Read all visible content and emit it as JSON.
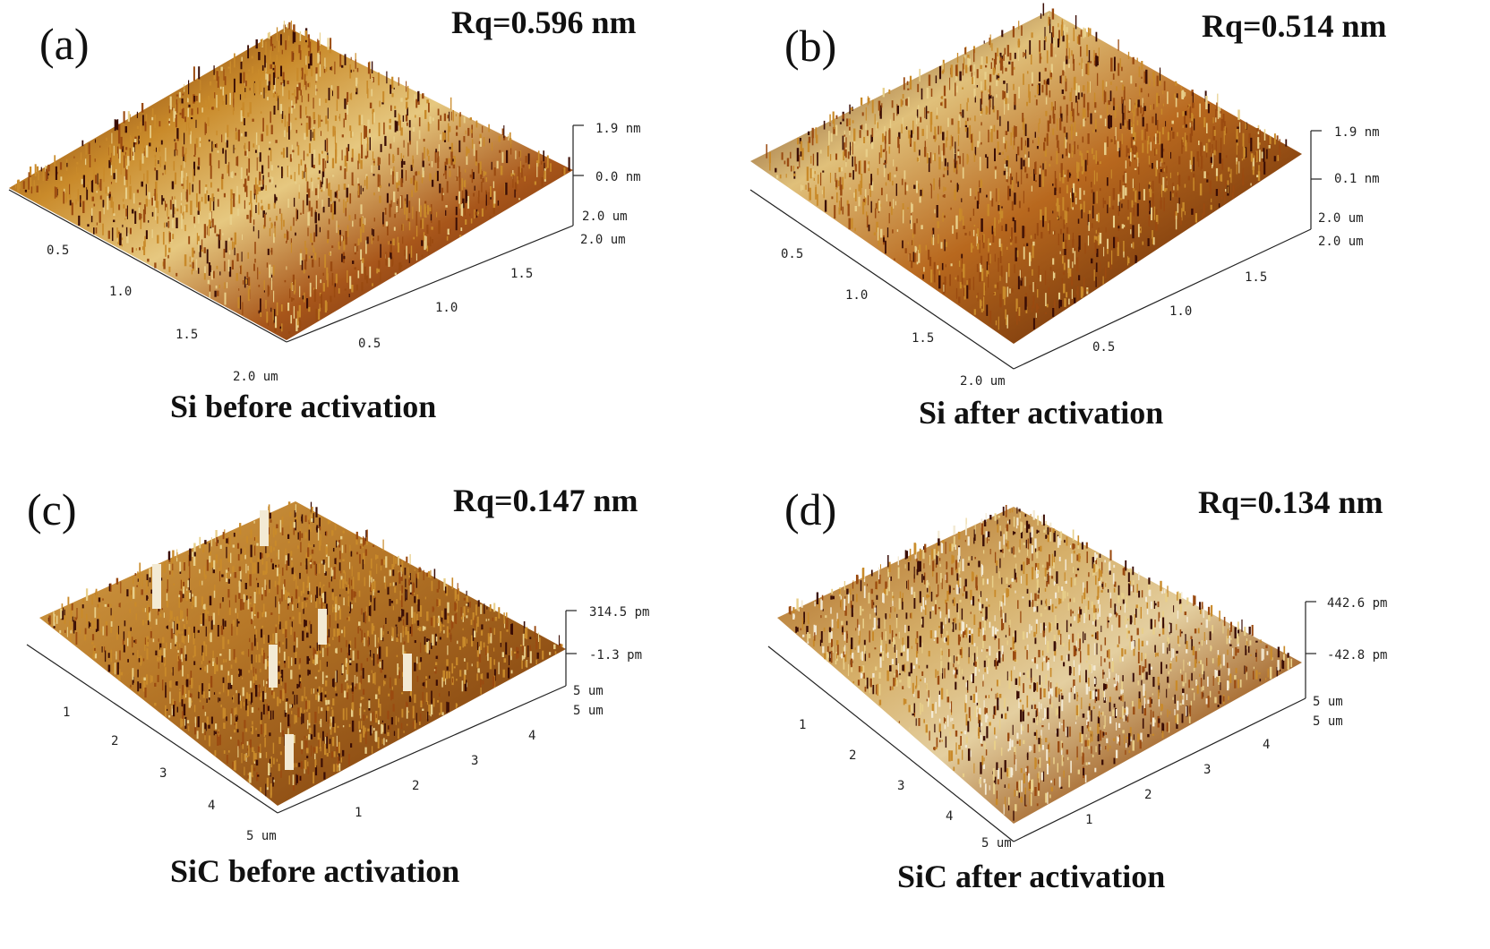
{
  "panels": [
    {
      "label": "(a)",
      "rq": "Rq=0.596 nm",
      "caption": "Si before activation",
      "z_top": "1.9 nm",
      "z_mid": "0.0 nm",
      "corner_a": "2.0 um",
      "corner_b": "2.0 um",
      "corner_c": "2.0 um",
      "left_ticks": [
        "0.5",
        "1.0",
        "1.5"
      ],
      "right_ticks": [
        "0.5",
        "1.0",
        "1.5"
      ]
    },
    {
      "label": "(b)",
      "rq": "Rq=0.514 nm",
      "caption": "Si after activation",
      "z_top": "1.9 nm",
      "z_mid": "0.1 nm",
      "corner_a": "2.0 um",
      "corner_b": "2.0 um",
      "corner_c": "2.0 um",
      "left_ticks": [
        "0.5",
        "1.0",
        "1.5"
      ],
      "right_ticks": [
        "0.5",
        "1.0",
        "1.5"
      ]
    },
    {
      "label": "(c)",
      "rq": "Rq=0.147 nm",
      "caption": "SiC before activation",
      "z_top": "314.5 pm",
      "z_mid": "-1.3 pm",
      "corner_a": "5 um",
      "corner_b": "5 um",
      "corner_c": "5 um",
      "left_ticks": [
        "1",
        "2",
        "3",
        "4"
      ],
      "right_ticks": [
        "1",
        "2",
        "3",
        "4"
      ]
    },
    {
      "label": "(d)",
      "rq": "Rq=0.134 nm",
      "caption": "SiC after activation",
      "z_top": "442.6 pm",
      "z_mid": "-42.8 pm",
      "corner_a": "5 um",
      "corner_b": "5 um",
      "corner_c": "5 um",
      "left_ticks": [
        "1",
        "2",
        "3",
        "4"
      ],
      "right_ticks": [
        "1",
        "2",
        "3",
        "4"
      ]
    }
  ],
  "colors": {
    "dark": "#3a0d05",
    "mid": "#9a4a10",
    "gold": "#c98a2a",
    "light": "#e8cf8a",
    "pale": "#f3ead4"
  }
}
